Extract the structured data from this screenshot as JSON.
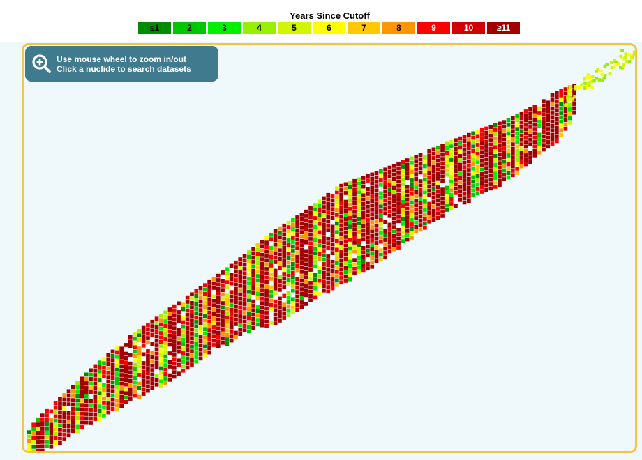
{
  "legend": {
    "title": "Years Since Cutoff",
    "items": [
      {
        "label": "≤1",
        "color": "#008c00",
        "text_color": "#000000"
      },
      {
        "label": "2",
        "color": "#00c800",
        "text_color": "#000000"
      },
      {
        "label": "3",
        "color": "#00f000",
        "text_color": "#000000"
      },
      {
        "label": "4",
        "color": "#96f000",
        "text_color": "#000000"
      },
      {
        "label": "5",
        "color": "#d2f500",
        "text_color": "#000000"
      },
      {
        "label": "6",
        "color": "#ffff00",
        "text_color": "#000000"
      },
      {
        "label": "7",
        "color": "#ffc800",
        "text_color": "#000000"
      },
      {
        "label": "8",
        "color": "#ff9600",
        "text_color": "#000000"
      },
      {
        "label": "9",
        "color": "#ff0000",
        "text_color": "#ffffff"
      },
      {
        "label": "10",
        "color": "#d20000",
        "text_color": "#ffffff"
      },
      {
        "label": "≥11",
        "color": "#a00000",
        "text_color": "#ffffff"
      }
    ]
  },
  "hint": {
    "line1": "Use mouse wheel to zoom in/out",
    "line2": "Click a nuclide to search datasets",
    "icon": "zoom-in-icon"
  },
  "chart_data": {
    "type": "heatmap",
    "description_colors": [
      "#008c00",
      "#00c800",
      "#00f000",
      "#96f000",
      "#d2f500",
      "#ffff00",
      "#ffc800",
      "#ff9600",
      "#ff0000",
      "#d20000",
      "#a00000"
    ],
    "background": "#eff9fb",
    "border_color": "#f5c542"
  }
}
